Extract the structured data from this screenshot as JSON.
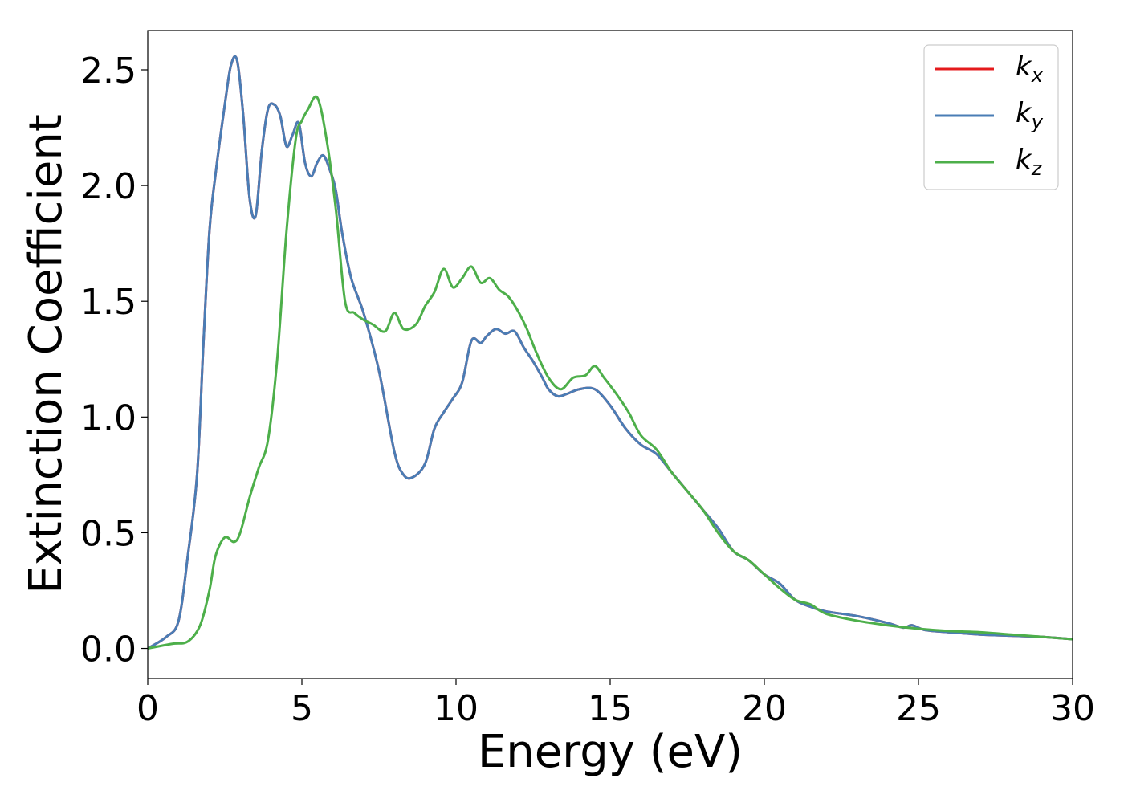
{
  "chart_data": {
    "type": "line",
    "xlabel": "Energy (eV)",
    "ylabel": "Extinction Coefficient",
    "xlim": [
      0,
      30
    ],
    "ylim": [
      -0.13,
      2.67
    ],
    "xticks": [
      0,
      5,
      10,
      15,
      20,
      25,
      30
    ],
    "xtick_labels": [
      "0",
      "5",
      "10",
      "15",
      "20",
      "25",
      "30"
    ],
    "yticks": [
      0.0,
      0.5,
      1.0,
      1.5,
      2.0,
      2.5
    ],
    "ytick_labels": [
      "0.0",
      "0.5",
      "1.0",
      "1.5",
      "2.0",
      "2.5"
    ],
    "grid": false,
    "legend_position": "top-right",
    "series": [
      {
        "name": "k_x",
        "base": "k",
        "sub": "x",
        "color": "#e41a1c",
        "x": [
          0,
          0.6,
          1.0,
          1.3,
          1.6,
          1.8,
          2.0,
          2.2,
          2.5,
          2.7,
          2.9,
          3.1,
          3.3,
          3.5,
          3.7,
          3.9,
          4.1,
          4.3,
          4.5,
          4.7,
          4.9,
          5.1,
          5.3,
          5.5,
          5.7,
          5.9,
          6.1,
          6.3,
          6.6,
          7.0,
          7.5,
          8.0,
          8.3,
          8.6,
          9.0,
          9.3,
          9.6,
          9.9,
          10.2,
          10.5,
          10.8,
          11.0,
          11.3,
          11.6,
          11.9,
          12.2,
          12.5,
          12.8,
          13.0,
          13.3,
          13.6,
          14.0,
          14.5,
          15.0,
          15.5,
          16.0,
          16.5,
          17.0,
          17.5,
          18.0,
          18.5,
          19.0,
          19.5,
          20.0,
          20.5,
          21.0,
          21.5,
          22.0,
          23.0,
          24.0,
          24.5,
          24.8,
          25.2,
          26.0,
          27.0,
          28.0,
          29.0,
          30.0
        ],
        "y": [
          0.0,
          0.05,
          0.12,
          0.4,
          0.75,
          1.3,
          1.8,
          2.05,
          2.35,
          2.52,
          2.54,
          2.3,
          1.95,
          1.87,
          2.15,
          2.33,
          2.35,
          2.3,
          2.17,
          2.22,
          2.27,
          2.1,
          2.04,
          2.1,
          2.13,
          2.07,
          1.98,
          1.8,
          1.6,
          1.45,
          1.2,
          0.85,
          0.75,
          0.74,
          0.8,
          0.95,
          1.02,
          1.08,
          1.15,
          1.33,
          1.32,
          1.35,
          1.38,
          1.36,
          1.37,
          1.3,
          1.24,
          1.17,
          1.12,
          1.09,
          1.1,
          1.12,
          1.12,
          1.05,
          0.95,
          0.88,
          0.84,
          0.76,
          0.68,
          0.6,
          0.52,
          0.42,
          0.38,
          0.32,
          0.28,
          0.21,
          0.18,
          0.16,
          0.14,
          0.11,
          0.09,
          0.1,
          0.08,
          0.07,
          0.06,
          0.055,
          0.05,
          0.04
        ]
      },
      {
        "name": "k_y",
        "base": "k",
        "sub": "y",
        "color": "#4a7db5",
        "x": [
          0,
          0.6,
          1.0,
          1.3,
          1.6,
          1.8,
          2.0,
          2.2,
          2.5,
          2.7,
          2.9,
          3.1,
          3.3,
          3.5,
          3.7,
          3.9,
          4.1,
          4.3,
          4.5,
          4.7,
          4.9,
          5.1,
          5.3,
          5.5,
          5.7,
          5.9,
          6.1,
          6.3,
          6.6,
          7.0,
          7.5,
          8.0,
          8.3,
          8.6,
          9.0,
          9.3,
          9.6,
          9.9,
          10.2,
          10.5,
          10.8,
          11.0,
          11.3,
          11.6,
          11.9,
          12.2,
          12.5,
          12.8,
          13.0,
          13.3,
          13.6,
          14.0,
          14.5,
          15.0,
          15.5,
          16.0,
          16.5,
          17.0,
          17.5,
          18.0,
          18.5,
          19.0,
          19.5,
          20.0,
          20.5,
          21.0,
          21.5,
          22.0,
          23.0,
          24.0,
          24.5,
          24.8,
          25.2,
          26.0,
          27.0,
          28.0,
          29.0,
          30.0
        ],
        "y": [
          0.0,
          0.05,
          0.12,
          0.4,
          0.75,
          1.3,
          1.8,
          2.05,
          2.35,
          2.52,
          2.54,
          2.3,
          1.95,
          1.87,
          2.15,
          2.33,
          2.35,
          2.3,
          2.17,
          2.22,
          2.27,
          2.1,
          2.04,
          2.1,
          2.13,
          2.07,
          1.98,
          1.8,
          1.6,
          1.45,
          1.2,
          0.85,
          0.75,
          0.74,
          0.8,
          0.95,
          1.02,
          1.08,
          1.15,
          1.33,
          1.32,
          1.35,
          1.38,
          1.36,
          1.37,
          1.3,
          1.24,
          1.17,
          1.12,
          1.09,
          1.1,
          1.12,
          1.12,
          1.05,
          0.95,
          0.88,
          0.84,
          0.76,
          0.68,
          0.6,
          0.52,
          0.42,
          0.38,
          0.32,
          0.28,
          0.21,
          0.18,
          0.16,
          0.14,
          0.11,
          0.09,
          0.1,
          0.08,
          0.07,
          0.06,
          0.055,
          0.05,
          0.04
        ]
      },
      {
        "name": "k_z",
        "base": "k",
        "sub": "z",
        "color": "#4daf4a",
        "x": [
          0,
          0.8,
          1.3,
          1.7,
          2.0,
          2.2,
          2.5,
          2.8,
          3.0,
          3.3,
          3.6,
          3.9,
          4.2,
          4.5,
          4.8,
          5.0,
          5.2,
          5.5,
          5.8,
          6.1,
          6.4,
          6.7,
          7.0,
          7.3,
          7.7,
          8.0,
          8.3,
          8.7,
          9.0,
          9.3,
          9.6,
          9.9,
          10.2,
          10.5,
          10.8,
          11.1,
          11.4,
          11.7,
          12.0,
          12.3,
          12.6,
          13.0,
          13.4,
          13.8,
          14.2,
          14.5,
          14.8,
          15.2,
          15.6,
          16.0,
          16.5,
          17.0,
          17.5,
          18.0,
          18.5,
          19.0,
          19.5,
          20.0,
          20.5,
          21.0,
          21.5,
          22.0,
          23.0,
          24.0,
          25.0,
          26.0,
          27.0,
          28.0,
          29.0,
          30.0
        ],
        "y": [
          0.0,
          0.02,
          0.03,
          0.1,
          0.25,
          0.4,
          0.48,
          0.46,
          0.5,
          0.65,
          0.78,
          0.9,
          1.25,
          1.8,
          2.2,
          2.28,
          2.33,
          2.38,
          2.2,
          1.9,
          1.5,
          1.45,
          1.42,
          1.4,
          1.37,
          1.45,
          1.38,
          1.4,
          1.48,
          1.54,
          1.64,
          1.56,
          1.6,
          1.65,
          1.58,
          1.6,
          1.55,
          1.52,
          1.46,
          1.38,
          1.28,
          1.17,
          1.12,
          1.17,
          1.18,
          1.22,
          1.17,
          1.1,
          1.02,
          0.92,
          0.86,
          0.76,
          0.68,
          0.6,
          0.5,
          0.42,
          0.38,
          0.32,
          0.26,
          0.21,
          0.19,
          0.15,
          0.12,
          0.1,
          0.085,
          0.075,
          0.07,
          0.06,
          0.05,
          0.04
        ]
      }
    ]
  }
}
